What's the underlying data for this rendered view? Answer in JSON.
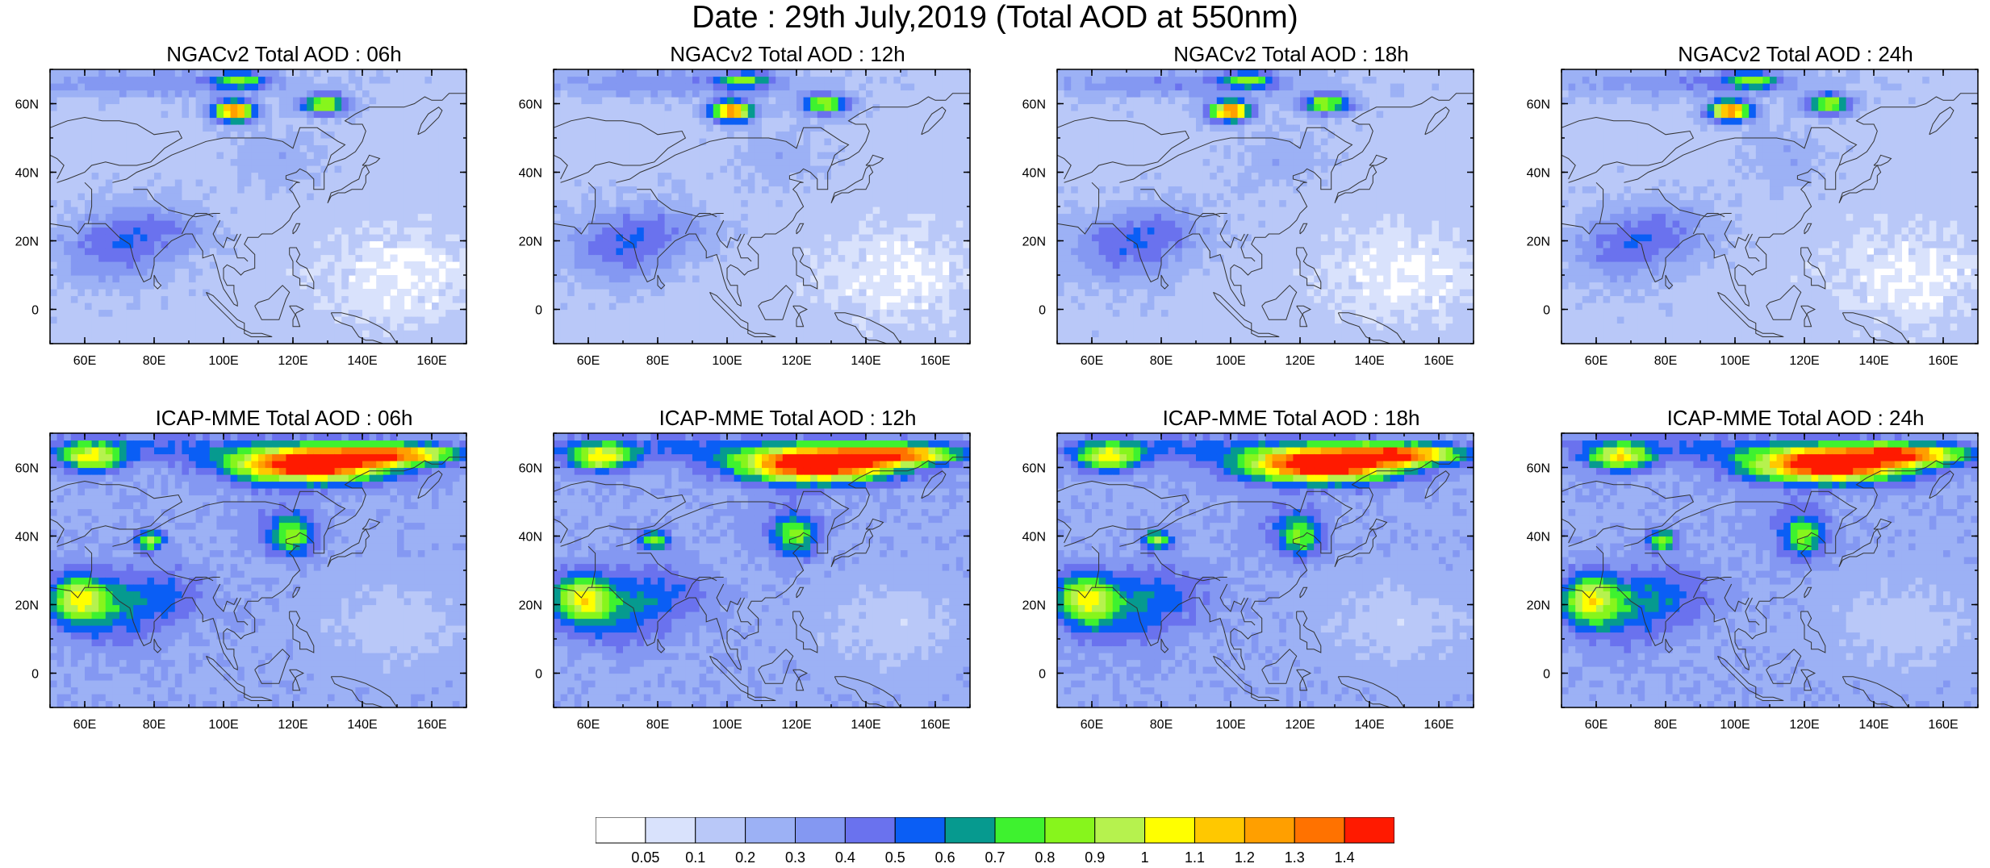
{
  "title": "Date : 29th July,2019 (Total AOD at 550nm)",
  "panels": [
    {
      "id": "ngac-06",
      "title": "NGACv2 Total AOD : 06h",
      "model": "ngac"
    },
    {
      "id": "ngac-12",
      "title": "NGACv2 Total AOD : 12h",
      "model": "ngac"
    },
    {
      "id": "ngac-18",
      "title": "NGACv2 Total AOD : 18h",
      "model": "ngac"
    },
    {
      "id": "ngac-24",
      "title": "NGACv2 Total AOD : 24h",
      "model": "ngac"
    },
    {
      "id": "icap-06",
      "title": "ICAP-MME Total AOD : 06h",
      "model": "icap"
    },
    {
      "id": "icap-12",
      "title": "ICAP-MME Total AOD : 12h",
      "model": "icap"
    },
    {
      "id": "icap-18",
      "title": "ICAP-MME Total AOD : 18h",
      "model": "icap"
    },
    {
      "id": "icap-24",
      "title": "ICAP-MME Total AOD : 24h",
      "model": "icap"
    }
  ],
  "map": {
    "lon_range": [
      50,
      170
    ],
    "lat_range": [
      -10,
      70
    ],
    "lon_ticks": [
      60,
      80,
      100,
      120,
      140,
      160
    ],
    "lon_tick_labels": [
      "60E",
      "80E",
      "100E",
      "120E",
      "140E",
      "160E"
    ],
    "lat_ticks": [
      0,
      20,
      40,
      60
    ],
    "lat_tick_labels": [
      "0",
      "20N",
      "40N",
      "60N"
    ]
  },
  "colorbar": {
    "colors": [
      "#ffffff",
      "#d9e2fc",
      "#b9c8f8",
      "#9cb1f5",
      "#8498f2",
      "#6a72ee",
      "#0a5ef5",
      "#069a8f",
      "#3ef22f",
      "#87f51c",
      "#b6f24e",
      "#ffff00",
      "#ffc800",
      "#ff9f00",
      "#ff7200",
      "#ff1a00"
    ],
    "labels": [
      "0.05",
      "0.1",
      "0.2",
      "0.3",
      "0.4",
      "0.5",
      "0.6",
      "0.7",
      "0.8",
      "0.9",
      "1",
      "1.1",
      "1.2",
      "1.3",
      "1.4"
    ]
  }
}
